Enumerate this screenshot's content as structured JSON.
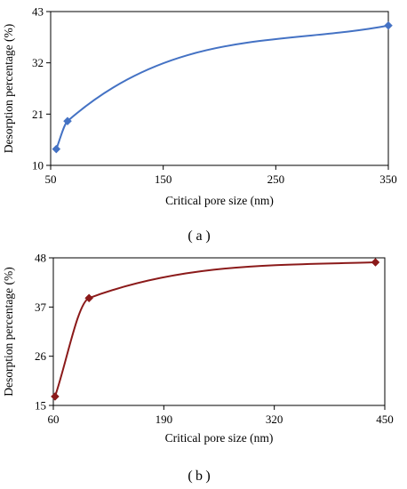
{
  "panels": [
    {
      "label_open": "(",
      "label_letter": "a",
      "label_close": ")"
    },
    {
      "label_open": "(",
      "label_letter": "b",
      "label_close": ")"
    }
  ],
  "chart_data": [
    {
      "type": "line",
      "xlabel": "Critical pore size (nm)",
      "ylabel": "Desorption percentage (%)",
      "xlim": [
        50,
        350
      ],
      "ylim": [
        10,
        43
      ],
      "xticks": [
        50,
        150,
        250,
        350
      ],
      "yticks": [
        10,
        21,
        32,
        43
      ],
      "grid": false,
      "series": [
        {
          "color": "#4472C4",
          "marker": "diamond",
          "x": [
            55,
            65,
            350
          ],
          "y": [
            13.5,
            19.5,
            40
          ]
        }
      ]
    },
    {
      "type": "line",
      "xlabel": "Critical pore size (nm)",
      "ylabel": "Desorption percentage (%)",
      "xlim": [
        60,
        450
      ],
      "ylim": [
        15,
        48
      ],
      "xticks": [
        60,
        190,
        320,
        450
      ],
      "yticks": [
        15,
        26,
        37,
        48
      ],
      "grid": false,
      "series": [
        {
          "color": "#8B1A1A",
          "marker": "diamond",
          "x": [
            62,
            102,
            439
          ],
          "y": [
            17,
            39,
            47
          ]
        }
      ]
    }
  ]
}
